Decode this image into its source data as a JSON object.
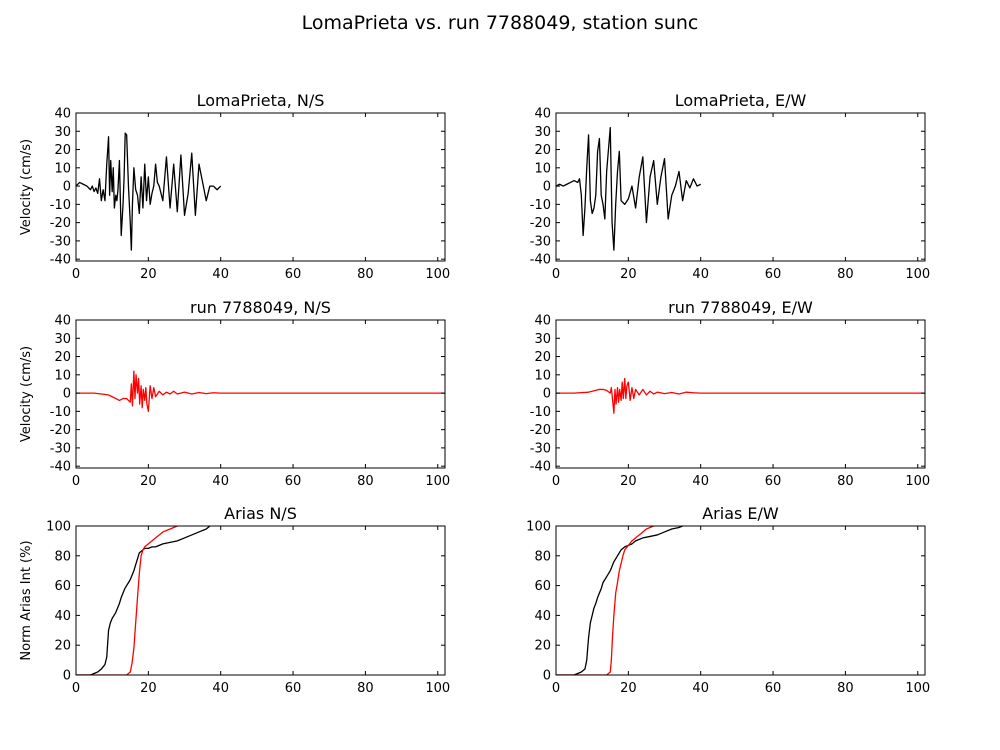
{
  "figure": {
    "title": "LomaPrieta vs. run 7788049, station sunc"
  },
  "chart_data": [
    {
      "type": "line",
      "title": "LomaPrieta, N/S",
      "ylabel": "Velocity (cm/s)",
      "xlim": [
        0,
        102
      ],
      "ylim": [
        -41,
        40
      ],
      "xticks": [
        0,
        20,
        40,
        60,
        80,
        100
      ],
      "yticks": [
        -40,
        -30,
        -20,
        -10,
        0,
        10,
        20,
        30,
        40
      ],
      "series": [
        {
          "color": "#000000",
          "x": [
            0,
            1,
            2,
            3,
            4,
            4.5,
            5,
            5.5,
            6,
            6.5,
            7,
            7.5,
            8,
            8.5,
            9,
            9.3,
            9.6,
            10,
            10.3,
            10.6,
            11,
            11.3,
            11.6,
            12,
            12.5,
            13,
            13.3,
            13.6,
            14,
            14.5,
            15,
            15.3,
            15.6,
            16,
            16.5,
            17,
            17.5,
            18,
            18.5,
            19,
            19.5,
            20,
            20.5,
            21,
            21.5,
            22,
            22.5,
            23,
            24,
            25,
            26,
            27,
            28,
            29,
            30,
            31,
            32,
            33,
            34,
            35,
            36,
            37,
            38,
            39,
            40
          ],
          "y": [
            0,
            2,
            1,
            0,
            -2,
            0,
            -3,
            -1,
            -4,
            4,
            -8,
            -2,
            -8,
            12,
            27,
            -5,
            14,
            -3,
            10,
            -12,
            -5,
            -8,
            -2,
            14,
            -27,
            -10,
            5,
            29,
            28,
            0,
            -20,
            -35,
            -10,
            10,
            -2,
            -5,
            -15,
            5,
            -12,
            12,
            -8,
            5,
            -10,
            -4,
            0,
            12,
            2,
            0,
            -8,
            16,
            -12,
            12,
            -14,
            17,
            -16,
            -4,
            18,
            -16,
            12,
            2,
            -8,
            0,
            0,
            -2,
            0
          ],
          "note": "visually approximated trace"
        }
      ]
    },
    {
      "type": "line",
      "title": "LomaPrieta, E/W",
      "ylabel": "",
      "xlim": [
        0,
        102
      ],
      "ylim": [
        -41,
        40
      ],
      "xticks": [
        0,
        20,
        40,
        60,
        80,
        100
      ],
      "yticks": [
        -40,
        -30,
        -20,
        -10,
        0,
        10,
        20,
        30,
        40
      ],
      "series": [
        {
          "color": "#000000",
          "x": [
            0,
            1,
            2,
            3,
            4,
            5,
            6,
            6.5,
            7,
            7.5,
            8,
            8.5,
            9,
            9.5,
            10,
            10.5,
            11,
            11.5,
            12,
            12.5,
            13,
            13.5,
            14,
            14.5,
            15,
            15.5,
            16,
            16.5,
            17,
            17.5,
            18,
            19,
            20,
            21,
            22,
            23,
            24,
            25,
            26,
            27,
            28,
            29,
            30,
            31,
            32,
            33,
            34,
            35,
            36,
            37,
            38,
            39,
            40
          ],
          "y": [
            0,
            1,
            0,
            1,
            2,
            3,
            2,
            4,
            -5,
            -27,
            -12,
            10,
            28,
            -8,
            -15,
            -12,
            -5,
            19,
            26,
            -5,
            -10,
            -18,
            8,
            20,
            32,
            -20,
            -35,
            -10,
            8,
            19,
            -8,
            -10,
            -7,
            0,
            -12,
            5,
            16,
            -20,
            5,
            14,
            -10,
            5,
            15,
            -18,
            -5,
            0,
            8,
            -8,
            3,
            -1,
            4,
            0,
            1
          ]
        }
      ]
    },
    {
      "type": "line",
      "title": "run 7788049, N/S",
      "ylabel": "Velocity (cm/s)",
      "xlim": [
        0,
        102
      ],
      "ylim": [
        -41,
        40
      ],
      "xticks": [
        0,
        20,
        40,
        60,
        80,
        100
      ],
      "yticks": [
        -40,
        -30,
        -20,
        -10,
        0,
        10,
        20,
        30,
        40
      ],
      "series": [
        {
          "color": "#ff0000",
          "x": [
            0,
            5,
            9,
            10,
            11,
            12,
            13,
            14,
            15,
            15.3,
            15.6,
            16,
            16.3,
            16.6,
            17,
            17.3,
            17.6,
            18,
            18.3,
            18.6,
            19,
            19.3,
            19.6,
            20,
            20.5,
            21,
            21.5,
            22,
            23,
            24,
            25,
            26,
            27,
            28,
            30,
            32,
            34,
            36,
            38,
            40,
            45,
            50,
            60,
            80,
            100,
            102
          ],
          "y": [
            0,
            0,
            -1,
            -2,
            -3,
            -4,
            -3,
            -3,
            -5,
            5,
            -7,
            12,
            -3,
            10,
            0,
            8,
            -6,
            4,
            -8,
            2,
            -4,
            3,
            -6,
            -10,
            4,
            -3,
            3,
            -2,
            1,
            -1,
            0.5,
            -0.5,
            1,
            -0.5,
            0.5,
            -0.5,
            0.3,
            -0.3,
            0.2,
            0,
            0,
            0,
            0,
            0,
            0,
            0
          ]
        }
      ]
    },
    {
      "type": "line",
      "title": "run 7788049, E/W",
      "ylabel": "",
      "xlim": [
        0,
        102
      ],
      "ylim": [
        -41,
        40
      ],
      "xticks": [
        0,
        20,
        40,
        60,
        80,
        100
      ],
      "yticks": [
        -40,
        -30,
        -20,
        -10,
        0,
        10,
        20,
        30,
        40
      ],
      "series": [
        {
          "color": "#ff0000",
          "x": [
            0,
            5,
            9,
            10,
            11,
            12,
            13,
            14,
            15,
            15.3,
            15.6,
            16,
            16.3,
            16.6,
            17,
            17.3,
            17.6,
            18,
            18.3,
            18.6,
            19,
            19.3,
            19.6,
            20,
            20.5,
            21,
            21.5,
            22,
            23,
            24,
            25,
            26,
            27,
            28,
            30,
            32,
            34,
            36,
            38,
            40,
            45,
            50,
            60,
            80,
            100,
            102
          ],
          "y": [
            0,
            0,
            0.5,
            1,
            1.5,
            2,
            2,
            1.5,
            0,
            3,
            -3,
            -11,
            2,
            -6,
            3,
            -5,
            2,
            -4,
            6,
            -3,
            8,
            -3,
            4,
            6,
            -4,
            3,
            -3,
            2,
            -1,
            2,
            -1,
            1,
            -0.5,
            0.5,
            -0.3,
            0.3,
            -0.5,
            0.5,
            0.2,
            0,
            0,
            0,
            0,
            0,
            0,
            0
          ]
        }
      ]
    },
    {
      "type": "line",
      "title": "Arias N/S",
      "ylabel": "Norm Arias Int (%)",
      "xlim": [
        0,
        102
      ],
      "ylim": [
        0,
        100
      ],
      "xticks": [
        0,
        20,
        40,
        60,
        80,
        100
      ],
      "yticks": [
        0,
        20,
        40,
        60,
        80,
        100
      ],
      "series": [
        {
          "color": "#000000",
          "x": [
            0,
            4,
            5,
            6,
            7,
            8,
            8.5,
            9,
            9.5,
            10,
            10.5,
            11,
            11.5,
            12,
            12.5,
            13,
            13.5,
            14,
            14.5,
            15,
            15.5,
            16,
            16.5,
            17,
            17.5,
            18,
            19,
            20,
            21,
            22,
            24,
            26,
            28,
            30,
            32,
            34,
            36,
            37
          ],
          "y": [
            0,
            0,
            1,
            2,
            4,
            7,
            12,
            30,
            35,
            38,
            40,
            42,
            45,
            48,
            52,
            55,
            58,
            60,
            62,
            64,
            67,
            70,
            74,
            78,
            82,
            83,
            85,
            85,
            86,
            86,
            88,
            89,
            90,
            92,
            94,
            96,
            98,
            100
          ]
        },
        {
          "color": "#ff0000",
          "x": [
            0,
            14,
            15,
            15.5,
            16,
            16.5,
            17,
            17.5,
            18,
            18.5,
            19,
            20,
            21,
            22,
            23,
            24,
            25,
            26,
            27,
            28
          ],
          "y": [
            0,
            0,
            2,
            8,
            18,
            35,
            52,
            68,
            80,
            84,
            86,
            88,
            90,
            92,
            94,
            96,
            97,
            98,
            99,
            100
          ]
        }
      ]
    },
    {
      "type": "line",
      "title": "Arias E/W",
      "ylabel": "",
      "xlim": [
        0,
        102
      ],
      "ylim": [
        0,
        100
      ],
      "xticks": [
        0,
        20,
        40,
        60,
        80,
        100
      ],
      "yticks": [
        0,
        20,
        40,
        60,
        80,
        100
      ],
      "series": [
        {
          "color": "#000000",
          "x": [
            0,
            5,
            6,
            7,
            8,
            8.5,
            9,
            9.5,
            10,
            10.5,
            11,
            11.5,
            12,
            12.5,
            13,
            13.5,
            14,
            14.5,
            15,
            15.5,
            16,
            16.5,
            17,
            17.5,
            18,
            19,
            20,
            21,
            22,
            24,
            26,
            28,
            30,
            32,
            34,
            35
          ],
          "y": [
            0,
            0,
            1,
            2,
            4,
            10,
            25,
            35,
            40,
            45,
            48,
            52,
            55,
            58,
            62,
            64,
            66,
            68,
            70,
            73,
            76,
            78,
            80,
            82,
            84,
            86,
            87,
            88,
            90,
            92,
            93,
            94,
            96,
            98,
            99,
            100
          ]
        },
        {
          "color": "#ff0000",
          "x": [
            0,
            14,
            15,
            15.3,
            15.6,
            16,
            16.5,
            17,
            17.5,
            18,
            18.5,
            19,
            20,
            21,
            22,
            23,
            24,
            25,
            26,
            27
          ],
          "y": [
            0,
            0,
            2,
            10,
            25,
            40,
            55,
            62,
            70,
            75,
            80,
            84,
            87,
            90,
            92,
            94,
            96,
            98,
            99,
            100
          ]
        }
      ]
    }
  ]
}
